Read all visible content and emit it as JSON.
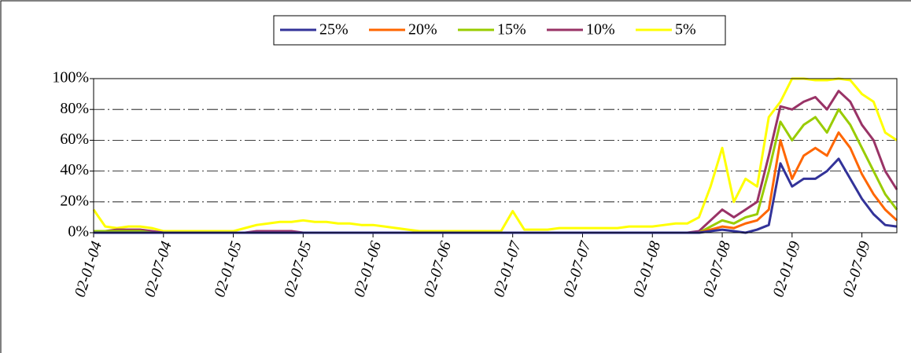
{
  "chart_data": {
    "type": "line",
    "x": [
      "02-01-04",
      "02-02-04",
      "02-03-04",
      "02-04-04",
      "02-05-04",
      "02-06-04",
      "02-07-04",
      "02-08-04",
      "02-09-04",
      "02-10-04",
      "02-11-04",
      "02-12-04",
      "02-01-05",
      "02-02-05",
      "02-03-05",
      "02-04-05",
      "02-05-05",
      "02-06-05",
      "02-07-05",
      "02-08-05",
      "02-09-05",
      "02-10-05",
      "02-11-05",
      "02-12-05",
      "02-01-06",
      "02-02-06",
      "02-03-06",
      "02-04-06",
      "02-05-06",
      "02-06-06",
      "02-07-06",
      "02-08-06",
      "02-09-06",
      "02-10-06",
      "02-11-06",
      "02-12-06",
      "02-01-07",
      "02-02-07",
      "02-03-07",
      "02-04-07",
      "02-05-07",
      "02-06-07",
      "02-07-07",
      "02-08-07",
      "02-09-07",
      "02-10-07",
      "02-11-07",
      "02-12-07",
      "02-01-08",
      "02-02-08",
      "02-03-08",
      "02-04-08",
      "02-05-08",
      "02-06-08",
      "02-07-08",
      "02-08-08",
      "02-09-08",
      "02-10-08",
      "02-11-08",
      "02-12-08",
      "02-01-09",
      "02-02-09",
      "02-03-09",
      "02-04-09",
      "02-05-09",
      "02-06-09",
      "02-07-09",
      "02-08-09",
      "02-09-09",
      "02-10-09"
    ],
    "xticks": [
      "02-01-04",
      "02-07-04",
      "02-01-05",
      "02-07-05",
      "02-01-06",
      "02-07-06",
      "02-01-07",
      "02-07-07",
      "02-01-08",
      "02-07-08",
      "02-01-09",
      "02-07-09"
    ],
    "ylim": [
      0,
      100
    ],
    "yticks": [
      {
        "value": 0,
        "label": "0%"
      },
      {
        "value": 20,
        "label": "20%"
      },
      {
        "value": 40,
        "label": "40%"
      },
      {
        "value": 60,
        "label": "60%"
      },
      {
        "value": 80,
        "label": "80%"
      },
      {
        "value": 100,
        "label": "100%"
      }
    ],
    "grid": true,
    "legend": "top",
    "series": [
      {
        "name": "25%",
        "color": "#333399",
        "values": [
          0,
          0,
          0,
          0,
          0,
          0,
          0,
          0,
          0,
          0,
          0,
          0,
          0,
          0,
          0,
          0,
          0,
          0,
          0,
          0,
          0,
          0,
          0,
          0,
          0,
          0,
          0,
          0,
          0,
          0,
          0,
          0,
          0,
          0,
          0,
          0,
          0,
          0,
          0,
          0,
          0,
          0,
          0,
          0,
          0,
          0,
          0,
          0,
          0,
          0,
          0,
          0,
          0,
          1,
          2,
          1,
          0,
          2,
          5,
          45,
          30,
          35,
          35,
          40,
          48,
          35,
          22,
          12,
          5,
          4
        ]
      },
      {
        "name": "20%",
        "color": "#ff6600",
        "values": [
          0,
          0,
          0,
          0,
          0,
          0,
          0,
          0,
          0,
          0,
          0,
          0,
          0,
          0,
          0,
          0,
          0,
          0,
          0,
          0,
          0,
          0,
          0,
          0,
          0,
          0,
          0,
          0,
          0,
          0,
          0,
          0,
          0,
          0,
          0,
          0,
          0,
          0,
          0,
          0,
          0,
          0,
          0,
          0,
          0,
          0,
          0,
          0,
          0,
          0,
          0,
          0,
          0,
          2,
          4,
          3,
          6,
          8,
          15,
          60,
          35,
          50,
          55,
          50,
          65,
          55,
          38,
          25,
          15,
          8
        ]
      },
      {
        "name": "15%",
        "color": "#99cc00",
        "values": [
          1,
          1,
          1,
          1,
          1,
          0,
          0,
          0,
          0,
          0,
          0,
          0,
          0,
          0,
          0,
          0,
          0,
          0,
          0,
          0,
          0,
          0,
          0,
          0,
          0,
          0,
          0,
          0,
          0,
          0,
          0,
          0,
          0,
          0,
          0,
          0,
          0,
          0,
          0,
          0,
          0,
          0,
          0,
          0,
          0,
          0,
          0,
          0,
          0,
          0,
          0,
          0,
          0,
          4,
          8,
          6,
          10,
          12,
          40,
          72,
          60,
          70,
          75,
          65,
          80,
          70,
          55,
          40,
          25,
          15
        ]
      },
      {
        "name": "10%",
        "color": "#993366",
        "values": [
          1,
          1,
          2,
          2,
          2,
          1,
          0,
          0,
          0,
          0,
          0,
          0,
          0,
          0,
          1,
          1,
          1,
          1,
          0,
          0,
          0,
          0,
          0,
          0,
          0,
          0,
          0,
          0,
          0,
          0,
          0,
          0,
          0,
          0,
          0,
          0,
          0,
          0,
          0,
          0,
          0,
          0,
          0,
          0,
          0,
          0,
          0,
          0,
          0,
          0,
          0,
          0,
          1,
          8,
          15,
          10,
          15,
          20,
          50,
          82,
          80,
          85,
          88,
          80,
          92,
          85,
          70,
          60,
          40,
          28
        ]
      },
      {
        "name": "5%",
        "color": "#ffff00",
        "values": [
          15,
          4,
          3,
          4,
          4,
          3,
          1,
          1,
          1,
          1,
          1,
          1,
          1,
          3,
          5,
          6,
          7,
          7,
          8,
          7,
          7,
          6,
          6,
          5,
          5,
          4,
          3,
          2,
          1,
          1,
          1,
          1,
          1,
          1,
          1,
          1,
          14,
          2,
          2,
          2,
          3,
          3,
          3,
          3,
          3,
          3,
          4,
          4,
          4,
          5,
          6,
          6,
          10,
          30,
          55,
          20,
          35,
          30,
          75,
          85,
          100,
          100,
          99,
          99,
          100,
          99,
          90,
          85,
          65,
          60
        ]
      }
    ]
  }
}
